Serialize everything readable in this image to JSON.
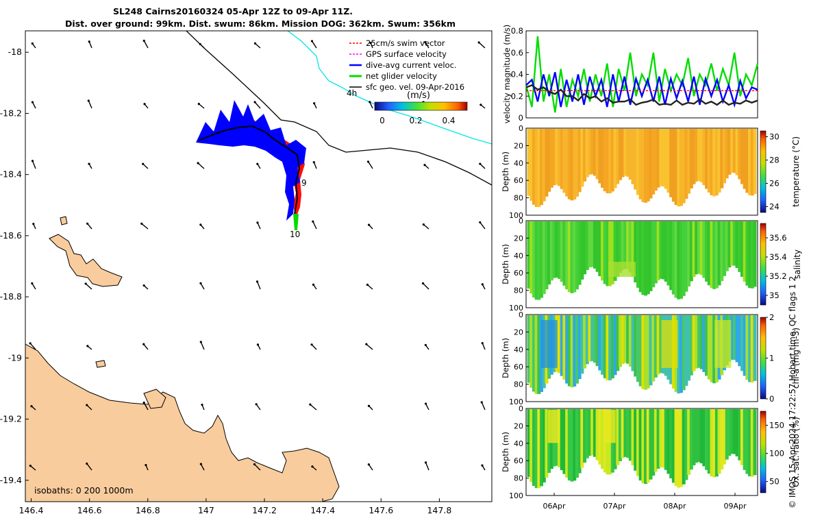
{
  "title": {
    "line1": "SL248 Cairns20160324 05-Apr 12Z to 09-Apr 11Z.",
    "line2": "Dist. over ground: 99km. Dist. swum: 86km. Mission DOG: 362km. Swum: 356km"
  },
  "credit": "© IMOS 15-Apr-2024 17:22:57 Hobart time. QC flags 1  2",
  "colors": {
    "land": "#f9cc9e",
    "swim_vector": "#ff0000",
    "gps_velocity": "#ff00ff",
    "dive_avg": "#0000ff",
    "net_velocity": "#00dd00",
    "sfc_geo": "#000000",
    "isobath_200": "#00e5e5"
  },
  "chart_data": [
    {
      "type": "map",
      "x_ticks": [
        "146.4",
        "146.6",
        "146.8",
        "147",
        "147.2",
        "147.4",
        "147.6",
        "147.8"
      ],
      "y_ticks": [
        "-18",
        "-18.2",
        "-18.4",
        "-18.6",
        "-18.8",
        "-19",
        "-19.2",
        "-19.4"
      ],
      "xlim": [
        146.38,
        147.98
      ],
      "ylim": [
        -19.47,
        -17.93
      ],
      "legend": {
        "entries": [
          "25cm/s swim vector",
          "GPS surface velocity",
          "dive-avg current veloc.",
          "net glider velocity",
          "sfc geo. vel. 09-Apr-2016"
        ],
        "colorbar_label": "(m/s)",
        "colorbar_ticks": [
          "0",
          "0.2",
          "0.4"
        ],
        "colorbar_range": [
          0,
          0.5
        ]
      },
      "annotations": [
        "4h",
        "9",
        "10"
      ],
      "isobaths_label": "isobaths: 0   200  1000m"
    },
    {
      "type": "line",
      "ylabel": "velocity magnitude (m/s)",
      "ylim": [
        0,
        0.8
      ],
      "y_ticks": [
        "0",
        "0.2",
        "0.4",
        "0.6",
        "0.8"
      ],
      "x": [
        5.5,
        5.6,
        5.7,
        5.8,
        5.9,
        6.0,
        6.1,
        6.2,
        6.3,
        6.4,
        6.5,
        6.6,
        6.7,
        6.8,
        6.9,
        7.0,
        7.1,
        7.2,
        7.3,
        7.4,
        7.5,
        7.6,
        7.7,
        7.8,
        7.9,
        8.0,
        8.1,
        8.2,
        8.3,
        8.4,
        8.5,
        8.6,
        8.7,
        8.8,
        8.9,
        9.0,
        9.1,
        9.2,
        9.3,
        9.4,
        9.5
      ],
      "series": [
        {
          "color": "#00dd00",
          "values": [
            0.3,
            0.1,
            0.75,
            0.15,
            0.4,
            0.05,
            0.45,
            0.1,
            0.35,
            0.2,
            0.45,
            0.15,
            0.4,
            0.2,
            0.5,
            0.1,
            0.45,
            0.25,
            0.6,
            0.2,
            0.4,
            0.3,
            0.6,
            0.15,
            0.45,
            0.25,
            0.4,
            0.3,
            0.55,
            0.2,
            0.4,
            0.3,
            0.5,
            0.25,
            0.45,
            0.3,
            0.6,
            0.2,
            0.4,
            0.3,
            0.5
          ]
        },
        {
          "color": "#0000ff",
          "values": [
            0.3,
            0.35,
            0.15,
            0.4,
            0.2,
            0.42,
            0.1,
            0.35,
            0.15,
            0.4,
            0.12,
            0.38,
            0.2,
            0.35,
            0.1,
            0.4,
            0.15,
            0.38,
            0.12,
            0.36,
            0.2,
            0.35,
            0.15,
            0.38,
            0.12,
            0.36,
            0.18,
            0.34,
            0.15,
            0.38,
            0.12,
            0.36,
            0.2,
            0.35,
            0.15,
            0.3,
            0.12,
            0.34,
            0.18,
            0.28,
            0.26
          ]
        },
        {
          "color": "#ff0000",
          "dashed": true,
          "values": [
            0.25,
            0.25,
            0.25,
            0.25,
            0.25,
            0.25,
            0.25,
            0.25,
            0.25,
            0.25,
            0.25,
            0.25,
            0.25,
            0.25,
            0.25,
            0.25,
            0.25,
            0.25,
            0.25,
            0.25,
            0.25,
            0.25,
            0.25,
            0.25,
            0.25,
            0.25,
            0.25,
            0.25,
            0.25,
            0.25,
            0.25,
            0.25,
            0.25,
            0.25,
            0.25,
            0.25,
            0.25,
            0.25,
            0.25,
            0.25,
            0.25
          ]
        },
        {
          "color": "#222222",
          "values": [
            0.28,
            0.3,
            0.26,
            0.28,
            0.24,
            0.22,
            0.26,
            0.2,
            0.2,
            0.16,
            0.22,
            0.18,
            0.2,
            0.15,
            0.18,
            0.14,
            0.15,
            0.15,
            0.17,
            0.12,
            0.14,
            0.15,
            0.17,
            0.12,
            0.13,
            0.12,
            0.16,
            0.12,
            0.14,
            0.13,
            0.17,
            0.13,
            0.15,
            0.12,
            0.16,
            0.12,
            0.14,
            0.13,
            0.16,
            0.14,
            0.16
          ]
        }
      ]
    },
    {
      "type": "heatmap",
      "ylabel": "Depth (m)",
      "y_ticks": [
        "0",
        "20",
        "40",
        "60",
        "80",
        "100"
      ],
      "colorbar_label": "temperature (°C)",
      "colorbar_ticks": [
        "24",
        "26",
        "28",
        "30"
      ],
      "colorbar_range": [
        23.5,
        30.5
      ],
      "colormap": [
        "#0a0a80",
        "#2060ff",
        "#00c0e0",
        "#40e040",
        "#c0e000",
        "#ffc000",
        "#ff6000",
        "#a00000"
      ],
      "dominant_colors": [
        "#f5a623",
        "#f7b52b",
        "#f0a020",
        "#f9c330"
      ],
      "values_top": 29.3,
      "values_bottom": 29.0
    },
    {
      "type": "heatmap",
      "ylabel": "Depth (m)",
      "y_ticks": [
        "0",
        "20",
        "40",
        "60",
        "80",
        "100"
      ],
      "colorbar_label": "salinity",
      "colorbar_ticks": [
        "35",
        "35.2",
        "35.4",
        "35.6"
      ],
      "colorbar_range": [
        34.9,
        35.75
      ],
      "colormap": [
        "#0a0a80",
        "#2060ff",
        "#00c0e0",
        "#40e040",
        "#c0e000",
        "#ffc000",
        "#ff6000",
        "#a00000"
      ],
      "dominant_colors": [
        "#3ccc30",
        "#44d03a",
        "#34c42c",
        "#60d840",
        "#9ee020"
      ]
    },
    {
      "type": "heatmap",
      "ylabel": "Depth (m)",
      "y_ticks": [
        "0",
        "20",
        "40",
        "60",
        "80",
        "100"
      ],
      "colorbar_label": "chl-a (mg m-3)",
      "colorbar_ticks": [
        "0",
        "1",
        "2"
      ],
      "colorbar_range": [
        0,
        2
      ],
      "colormap": [
        "#0a0a80",
        "#2060ff",
        "#00c0e0",
        "#40e040",
        "#c0e000",
        "#ffc000",
        "#ff6000",
        "#a00000"
      ],
      "dominant_colors": [
        "#30a8e8",
        "#40c0b0",
        "#48c868",
        "#3cc050",
        "#a8e030",
        "#e0e000"
      ]
    },
    {
      "type": "heatmap",
      "ylabel": "Depth (m)",
      "y_ticks": [
        "0",
        "20",
        "40",
        "60",
        "80",
        "100"
      ],
      "x_ticks": [
        "06Apr",
        "07Apr",
        "08Apr",
        "09Apr"
      ],
      "colorbar_label": "Ox. sat. ratio (%)",
      "colorbar_ticks": [
        "50",
        "100",
        "150"
      ],
      "colorbar_range": [
        30,
        175
      ],
      "colormap": [
        "#0a0a80",
        "#2060ff",
        "#00c0e0",
        "#40e040",
        "#c0e000",
        "#ffc000",
        "#ff6000",
        "#a00000"
      ],
      "dominant_colors": [
        "#30c040",
        "#38c848",
        "#20b838",
        "#c8e820",
        "#e0e820"
      ]
    }
  ]
}
